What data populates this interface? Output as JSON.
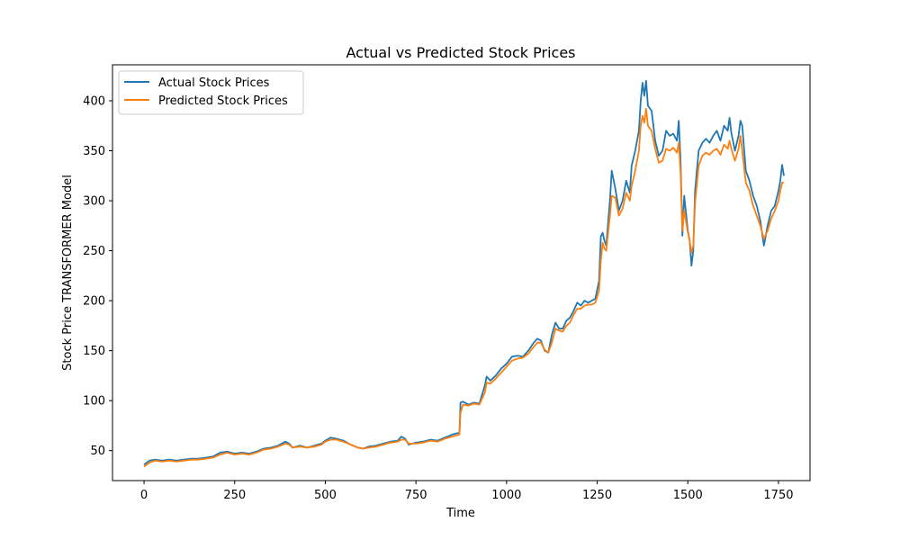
{
  "chart_data": {
    "type": "line",
    "title": "Actual vs Predicted Stock Prices",
    "xlabel": "Time",
    "ylabel": "Stock Price TRANSFORMER Model",
    "xlim": [
      -87,
      1837
    ],
    "ylim": [
      20,
      436
    ],
    "xticks": [
      0,
      250,
      500,
      750,
      1000,
      1250,
      1500,
      1750
    ],
    "yticks": [
      50,
      100,
      150,
      200,
      250,
      300,
      350,
      400
    ],
    "legend_position": "top-left",
    "grid": false,
    "series": [
      {
        "name": "Actual Stock Prices",
        "color": "#1f77b4",
        "points": [
          [
            0,
            36
          ],
          [
            15,
            40
          ],
          [
            30,
            41
          ],
          [
            50,
            40
          ],
          [
            70,
            41
          ],
          [
            90,
            40
          ],
          [
            110,
            41
          ],
          [
            130,
            42
          ],
          [
            150,
            42
          ],
          [
            170,
            43
          ],
          [
            190,
            44
          ],
          [
            210,
            48
          ],
          [
            230,
            49
          ],
          [
            250,
            47
          ],
          [
            270,
            48
          ],
          [
            290,
            47
          ],
          [
            310,
            49
          ],
          [
            330,
            52
          ],
          [
            350,
            53
          ],
          [
            370,
            55
          ],
          [
            390,
            59
          ],
          [
            400,
            57
          ],
          [
            410,
            53
          ],
          [
            430,
            55
          ],
          [
            450,
            53
          ],
          [
            470,
            55
          ],
          [
            490,
            57
          ],
          [
            500,
            60
          ],
          [
            515,
            63
          ],
          [
            530,
            62
          ],
          [
            550,
            60
          ],
          [
            570,
            56
          ],
          [
            590,
            53
          ],
          [
            605,
            52
          ],
          [
            620,
            54
          ],
          [
            640,
            55
          ],
          [
            660,
            57
          ],
          [
            680,
            59
          ],
          [
            700,
            60
          ],
          [
            710,
            64
          ],
          [
            720,
            62
          ],
          [
            730,
            56
          ],
          [
            750,
            58
          ],
          [
            770,
            59
          ],
          [
            790,
            61
          ],
          [
            810,
            60
          ],
          [
            830,
            63
          ],
          [
            850,
            66
          ],
          [
            870,
            68
          ],
          [
            873,
            98
          ],
          [
            880,
            99
          ],
          [
            895,
            96
          ],
          [
            910,
            98
          ],
          [
            925,
            97
          ],
          [
            940,
            115
          ],
          [
            945,
            124
          ],
          [
            955,
            120
          ],
          [
            970,
            125
          ],
          [
            985,
            132
          ],
          [
            1000,
            137
          ],
          [
            1015,
            144
          ],
          [
            1030,
            145
          ],
          [
            1045,
            144
          ],
          [
            1060,
            150
          ],
          [
            1075,
            158
          ],
          [
            1085,
            162
          ],
          [
            1095,
            160
          ],
          [
            1105,
            150
          ],
          [
            1115,
            148
          ],
          [
            1125,
            166
          ],
          [
            1135,
            178
          ],
          [
            1145,
            172
          ],
          [
            1155,
            172
          ],
          [
            1165,
            180
          ],
          [
            1175,
            183
          ],
          [
            1185,
            190
          ],
          [
            1195,
            198
          ],
          [
            1205,
            195
          ],
          [
            1215,
            200
          ],
          [
            1225,
            198
          ],
          [
            1235,
            200
          ],
          [
            1245,
            202
          ],
          [
            1255,
            220
          ],
          [
            1260,
            264
          ],
          [
            1265,
            268
          ],
          [
            1270,
            260
          ],
          [
            1275,
            255
          ],
          [
            1285,
            300
          ],
          [
            1290,
            330
          ],
          [
            1300,
            312
          ],
          [
            1310,
            290
          ],
          [
            1320,
            300
          ],
          [
            1330,
            320
          ],
          [
            1340,
            308
          ],
          [
            1345,
            335
          ],
          [
            1355,
            350
          ],
          [
            1365,
            370
          ],
          [
            1370,
            400
          ],
          [
            1375,
            418
          ],
          [
            1380,
            405
          ],
          [
            1385,
            420
          ],
          [
            1390,
            395
          ],
          [
            1400,
            390
          ],
          [
            1410,
            360
          ],
          [
            1420,
            345
          ],
          [
            1430,
            350
          ],
          [
            1440,
            370
          ],
          [
            1450,
            365
          ],
          [
            1460,
            367
          ],
          [
            1470,
            360
          ],
          [
            1475,
            380
          ],
          [
            1480,
            340
          ],
          [
            1485,
            265
          ],
          [
            1490,
            305
          ],
          [
            1500,
            270
          ],
          [
            1505,
            260
          ],
          [
            1510,
            235
          ],
          [
            1515,
            250
          ],
          [
            1520,
            310
          ],
          [
            1530,
            350
          ],
          [
            1540,
            358
          ],
          [
            1550,
            362
          ],
          [
            1560,
            358
          ],
          [
            1570,
            365
          ],
          [
            1580,
            370
          ],
          [
            1590,
            360
          ],
          [
            1600,
            375
          ],
          [
            1610,
            370
          ],
          [
            1615,
            383
          ],
          [
            1620,
            368
          ],
          [
            1630,
            350
          ],
          [
            1640,
            365
          ],
          [
            1645,
            380
          ],
          [
            1650,
            375
          ],
          [
            1660,
            330
          ],
          [
            1670,
            320
          ],
          [
            1680,
            305
          ],
          [
            1690,
            295
          ],
          [
            1700,
            280
          ],
          [
            1710,
            255
          ],
          [
            1720,
            275
          ],
          [
            1730,
            290
          ],
          [
            1740,
            295
          ],
          [
            1750,
            310
          ],
          [
            1755,
            320
          ],
          [
            1760,
            336
          ],
          [
            1765,
            325
          ]
        ]
      },
      {
        "name": "Predicted Stock Prices",
        "color": "#ff7f0e",
        "points": [
          [
            0,
            34
          ],
          [
            15,
            38
          ],
          [
            30,
            40
          ],
          [
            50,
            39
          ],
          [
            70,
            40
          ],
          [
            90,
            39
          ],
          [
            110,
            40
          ],
          [
            130,
            41
          ],
          [
            150,
            41
          ],
          [
            170,
            42
          ],
          [
            190,
            43
          ],
          [
            210,
            46
          ],
          [
            230,
            48
          ],
          [
            250,
            46
          ],
          [
            270,
            47
          ],
          [
            290,
            46
          ],
          [
            310,
            48
          ],
          [
            330,
            51
          ],
          [
            350,
            52
          ],
          [
            370,
            54
          ],
          [
            390,
            57
          ],
          [
            400,
            56
          ],
          [
            410,
            53
          ],
          [
            430,
            54
          ],
          [
            450,
            53
          ],
          [
            470,
            54
          ],
          [
            490,
            56
          ],
          [
            500,
            59
          ],
          [
            515,
            61
          ],
          [
            530,
            61
          ],
          [
            550,
            59
          ],
          [
            570,
            56
          ],
          [
            590,
            53
          ],
          [
            605,
            52
          ],
          [
            620,
            53
          ],
          [
            640,
            54
          ],
          [
            660,
            56
          ],
          [
            680,
            58
          ],
          [
            700,
            59
          ],
          [
            710,
            61
          ],
          [
            720,
            61
          ],
          [
            730,
            57
          ],
          [
            750,
            57
          ],
          [
            770,
            58
          ],
          [
            790,
            60
          ],
          [
            810,
            59
          ],
          [
            830,
            62
          ],
          [
            850,
            64
          ],
          [
            870,
            66
          ],
          [
            873,
            88
          ],
          [
            880,
            96
          ],
          [
            895,
            95
          ],
          [
            910,
            97
          ],
          [
            925,
            96
          ],
          [
            940,
            108
          ],
          [
            945,
            118
          ],
          [
            955,
            117
          ],
          [
            970,
            122
          ],
          [
            985,
            128
          ],
          [
            1000,
            134
          ],
          [
            1015,
            140
          ],
          [
            1030,
            142
          ],
          [
            1045,
            143
          ],
          [
            1060,
            147
          ],
          [
            1075,
            154
          ],
          [
            1085,
            158
          ],
          [
            1095,
            158
          ],
          [
            1105,
            151
          ],
          [
            1115,
            148
          ],
          [
            1125,
            158
          ],
          [
            1135,
            172
          ],
          [
            1145,
            170
          ],
          [
            1155,
            169
          ],
          [
            1165,
            175
          ],
          [
            1175,
            178
          ],
          [
            1185,
            186
          ],
          [
            1195,
            192
          ],
          [
            1205,
            192
          ],
          [
            1215,
            195
          ],
          [
            1225,
            196
          ],
          [
            1235,
            196
          ],
          [
            1245,
            198
          ],
          [
            1255,
            210
          ],
          [
            1260,
            240
          ],
          [
            1265,
            258
          ],
          [
            1270,
            252
          ],
          [
            1275,
            250
          ],
          [
            1285,
            285
          ],
          [
            1290,
            305
          ],
          [
            1300,
            303
          ],
          [
            1310,
            285
          ],
          [
            1320,
            292
          ],
          [
            1330,
            308
          ],
          [
            1340,
            300
          ],
          [
            1345,
            315
          ],
          [
            1355,
            330
          ],
          [
            1365,
            350
          ],
          [
            1370,
            375
          ],
          [
            1375,
            385
          ],
          [
            1380,
            378
          ],
          [
            1385,
            392
          ],
          [
            1390,
            375
          ],
          [
            1400,
            370
          ],
          [
            1410,
            352
          ],
          [
            1420,
            338
          ],
          [
            1430,
            340
          ],
          [
            1440,
            352
          ],
          [
            1450,
            350
          ],
          [
            1460,
            353
          ],
          [
            1470,
            348
          ],
          [
            1475,
            358
          ],
          [
            1480,
            328
          ],
          [
            1485,
            270
          ],
          [
            1490,
            290
          ],
          [
            1500,
            268
          ],
          [
            1505,
            260
          ],
          [
            1510,
            248
          ],
          [
            1515,
            255
          ],
          [
            1520,
            298
          ],
          [
            1530,
            335
          ],
          [
            1540,
            345
          ],
          [
            1550,
            348
          ],
          [
            1560,
            346
          ],
          [
            1570,
            350
          ],
          [
            1580,
            352
          ],
          [
            1590,
            346
          ],
          [
            1600,
            356
          ],
          [
            1610,
            352
          ],
          [
            1615,
            360
          ],
          [
            1620,
            352
          ],
          [
            1630,
            340
          ],
          [
            1640,
            352
          ],
          [
            1645,
            365
          ],
          [
            1650,
            350
          ],
          [
            1660,
            318
          ],
          [
            1670,
            310
          ],
          [
            1680,
            295
          ],
          [
            1690,
            285
          ],
          [
            1700,
            275
          ],
          [
            1710,
            262
          ],
          [
            1720,
            270
          ],
          [
            1730,
            282
          ],
          [
            1740,
            290
          ],
          [
            1750,
            300
          ],
          [
            1755,
            310
          ],
          [
            1760,
            318
          ],
          [
            1765,
            318
          ]
        ]
      }
    ]
  }
}
